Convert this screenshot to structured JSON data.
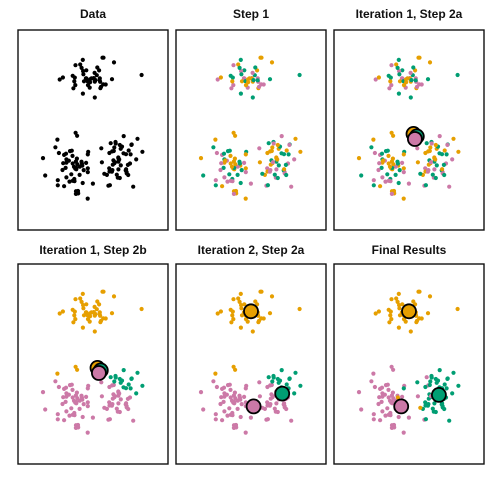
{
  "figure": {
    "panels": [
      {
        "key": "data",
        "title": "Data"
      },
      {
        "key": "step1",
        "title": "Step 1"
      },
      {
        "key": "iter1a",
        "title": "Iteration 1, Step 2a"
      },
      {
        "key": "iter1b",
        "title": "Iteration 1, Step 2b"
      },
      {
        "key": "iter2a",
        "title": "Iteration 2, Step 2a"
      },
      {
        "key": "final",
        "title": "Final Results"
      }
    ],
    "colors": {
      "cluster_orange": "#E69F00",
      "cluster_pink": "#CC79A7",
      "cluster_green": "#009E73",
      "unassigned": "#000000",
      "frame": "#111111"
    },
    "point_groups": [
      {
        "center": [
          5.0,
          11.0
        ],
        "spread": [
          1.6,
          1.2
        ],
        "count": 45,
        "true_cluster": "orange"
      },
      {
        "center": [
          3.5,
          4.0
        ],
        "spread": [
          1.5,
          2.0
        ],
        "count": 55,
        "true_cluster": "pink"
      },
      {
        "center": [
          7.2,
          4.6
        ],
        "spread": [
          1.3,
          1.4
        ],
        "count": 45,
        "true_cluster": "green"
      },
      {
        "center": [
          5.5,
          4.4
        ],
        "spread": [
          2.0,
          1.6
        ],
        "count": 5,
        "true_cluster": "mixed"
      }
    ],
    "centroids": {
      "iter1a": [
        {
          "cluster": "orange",
          "x": 5.35,
          "y": 6.7
        },
        {
          "cluster": "green",
          "x": 5.6,
          "y": 6.5
        },
        {
          "cluster": "pink",
          "x": 5.45,
          "y": 6.3
        }
      ],
      "iter1b": [
        {
          "cluster": "orange",
          "x": 5.35,
          "y": 6.7
        },
        {
          "cluster": "green",
          "x": 5.6,
          "y": 6.5
        },
        {
          "cluster": "pink",
          "x": 5.45,
          "y": 6.3
        }
      ],
      "iter2a": [
        {
          "cluster": "orange",
          "x": 5.0,
          "y": 11.1
        },
        {
          "cluster": "pink",
          "x": 5.2,
          "y": 3.7
        },
        {
          "cluster": "green",
          "x": 7.4,
          "y": 4.7
        }
      ],
      "final": [
        {
          "cluster": "orange",
          "x": 5.0,
          "y": 11.1
        },
        {
          "cluster": "pink",
          "x": 4.4,
          "y": 3.7
        },
        {
          "cluster": "green",
          "x": 7.3,
          "y": 4.6
        }
      ]
    },
    "domain": {
      "x": [
        0,
        10
      ],
      "y": [
        0,
        14
      ]
    }
  }
}
